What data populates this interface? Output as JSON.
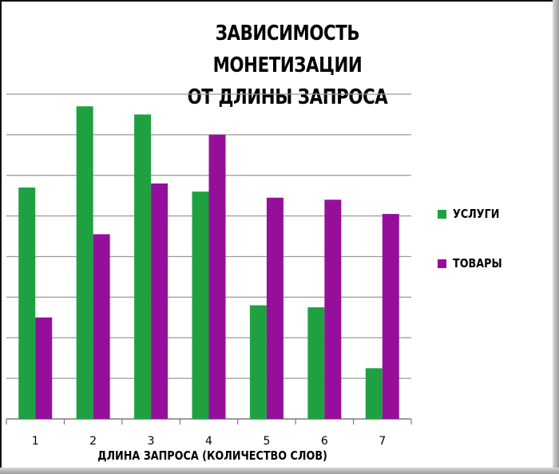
{
  "chart_data": {
    "type": "bar",
    "title_lines": [
      "ЗАВИСИМОСТЬ МОНЕТИЗАЦИИ",
      "ОТ ДЛИНЫ ЗАПРОСА"
    ],
    "xlabel": "ДЛИНА ЗАПРОСА (КОЛИЧЕСТВО СЛОВ)",
    "ylabel": "",
    "categories": [
      "1",
      "2",
      "3",
      "4",
      "5",
      "6",
      "7"
    ],
    "series": [
      {
        "name": "УСЛУГИ",
        "color": "#1fa142",
        "values": [
          5.7,
          7.7,
          7.5,
          5.6,
          2.8,
          2.75,
          1.25
        ]
      },
      {
        "name": "ТОВАРЫ",
        "color": "#960f9b",
        "values": [
          2.5,
          4.55,
          5.8,
          7.0,
          5.45,
          5.4,
          5.05
        ]
      }
    ],
    "ylim": [
      0,
      8
    ],
    "grid": true,
    "legend_position": "right"
  }
}
